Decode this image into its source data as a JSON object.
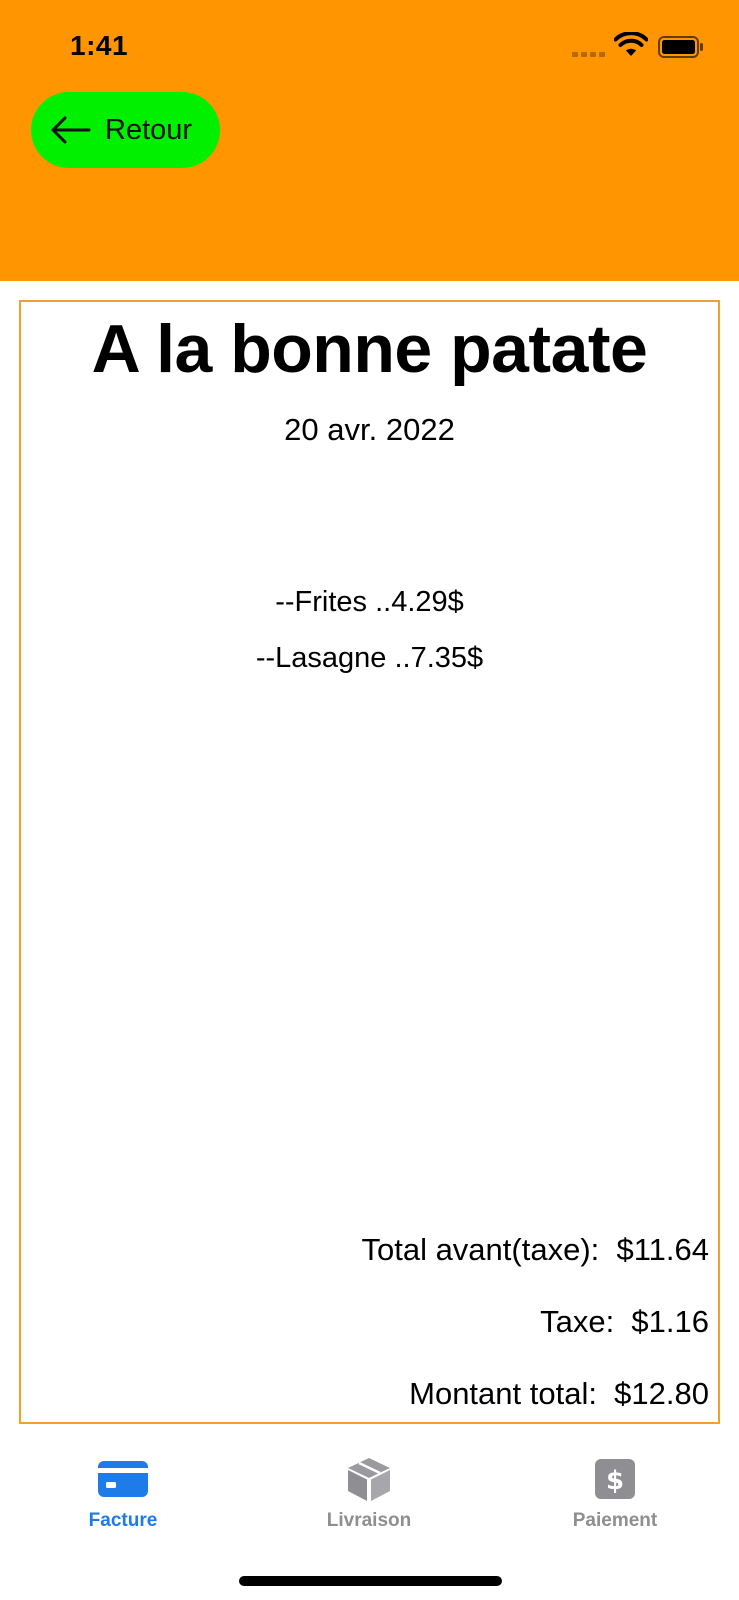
{
  "status_bar": {
    "time": "1:41"
  },
  "header": {
    "back_label": "Retour"
  },
  "receipt": {
    "restaurant_name": "A la bonne patate",
    "date": "20 avr. 2022",
    "items": [
      "--Frites  ..4.29$",
      "--Lasagne  ..7.35$"
    ],
    "totals": {
      "subtotal_line": "Total avant(taxe):  $11.64",
      "tax_line": "Taxe:  $1.16",
      "total_line": "Montant total:  $12.80"
    }
  },
  "tab_bar": {
    "tabs": [
      {
        "label": "Facture",
        "icon": "credit-card-icon",
        "active": true
      },
      {
        "label": "Livraison",
        "icon": "package-icon",
        "active": false
      },
      {
        "label": "Paiement",
        "icon": "dollar-icon",
        "active": false
      }
    ]
  },
  "colors": {
    "header": "#FF9500",
    "back_button": "#00F000",
    "receipt_border": "#F0A030",
    "tab_active": "#1E7BE8",
    "tab_inactive": "#8E8E93"
  }
}
